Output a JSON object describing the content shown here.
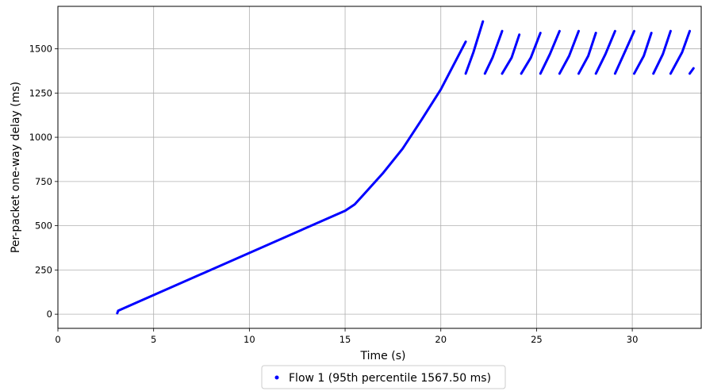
{
  "chart_data": {
    "type": "scatter",
    "xlabel": "Time (s)",
    "ylabel": "Per-packet one-way delay (ms)",
    "xlim": [
      0,
      33.6
    ],
    "ylim": [
      -80,
      1740
    ],
    "xticks": [
      0,
      5,
      10,
      15,
      20,
      25,
      30
    ],
    "yticks": [
      0,
      250,
      500,
      750,
      1000,
      1250,
      1500
    ],
    "grid": true,
    "legend_position": "bottom-center",
    "series": [
      {
        "name": "Flow 1 (95th percentile 1567.50 ms)",
        "color": "#0000ff",
        "segments": [
          [
            [
              3.1,
              5
            ],
            [
              3.15,
              20
            ],
            [
              15.0,
              585
            ],
            [
              15.5,
              620
            ],
            [
              16.0,
              680
            ],
            [
              17.0,
              800
            ],
            [
              18.0,
              935
            ],
            [
              19.0,
              1100
            ],
            [
              20.0,
              1270
            ],
            [
              21.3,
              1540
            ]
          ],
          [
            [
              21.3,
              1360
            ],
            [
              21.7,
              1480
            ],
            [
              22.2,
              1655
            ]
          ],
          [
            [
              22.3,
              1360
            ],
            [
              22.7,
              1450
            ],
            [
              23.2,
              1600
            ]
          ],
          [
            [
              23.2,
              1360
            ],
            [
              23.7,
              1450
            ],
            [
              24.1,
              1580
            ]
          ],
          [
            [
              24.2,
              1360
            ],
            [
              24.7,
              1450
            ],
            [
              25.2,
              1590
            ]
          ],
          [
            [
              25.2,
              1360
            ],
            [
              25.7,
              1470
            ],
            [
              26.2,
              1600
            ]
          ],
          [
            [
              26.2,
              1360
            ],
            [
              26.7,
              1460
            ],
            [
              27.2,
              1600
            ]
          ],
          [
            [
              27.2,
              1360
            ],
            [
              27.7,
              1460
            ],
            [
              28.1,
              1590
            ]
          ],
          [
            [
              28.1,
              1360
            ],
            [
              28.6,
              1470
            ],
            [
              29.1,
              1600
            ]
          ],
          [
            [
              29.1,
              1360
            ],
            [
              29.6,
              1480
            ],
            [
              30.1,
              1600
            ]
          ],
          [
            [
              30.1,
              1360
            ],
            [
              30.6,
              1460
            ],
            [
              31.0,
              1590
            ]
          ],
          [
            [
              31.1,
              1360
            ],
            [
              31.6,
              1470
            ],
            [
              32.0,
              1600
            ]
          ],
          [
            [
              32.0,
              1360
            ],
            [
              32.6,
              1480
            ],
            [
              33.0,
              1600
            ]
          ],
          [
            [
              33.0,
              1360
            ],
            [
              33.2,
              1390
            ]
          ]
        ]
      }
    ]
  }
}
